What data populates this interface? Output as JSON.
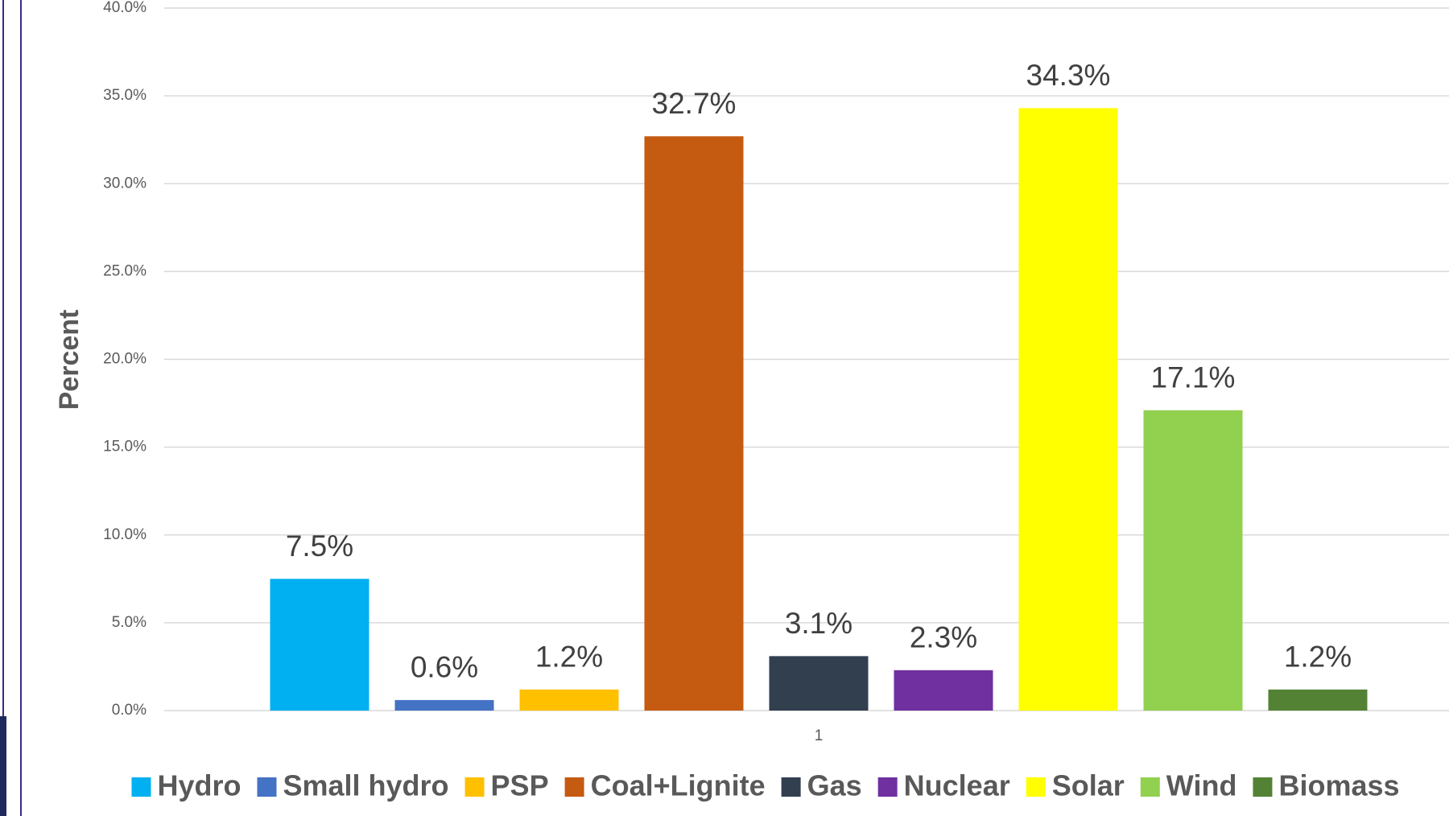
{
  "chart_data": {
    "type": "bar",
    "y_label": "Percent",
    "categories": [
      "1"
    ],
    "series": [
      {
        "name": "Hydro",
        "color": "#00b0f0",
        "values": [
          7.5
        ],
        "value_labels": [
          "7.5%"
        ]
      },
      {
        "name": "Small hydro",
        "color": "#4472c4",
        "values": [
          0.6
        ],
        "value_labels": [
          "0.6%"
        ]
      },
      {
        "name": "PSP",
        "color": "#ffc000",
        "values": [
          1.2
        ],
        "value_labels": [
          "1.2%"
        ]
      },
      {
        "name": "Coal+Lignite",
        "color": "#c55a11",
        "values": [
          32.7
        ],
        "value_labels": [
          "32.7%"
        ]
      },
      {
        "name": "Gas",
        "color": "#323f4f",
        "values": [
          3.1
        ],
        "value_labels": [
          "3.1%"
        ]
      },
      {
        "name": "Nuclear",
        "color": "#7030a0",
        "values": [
          2.3
        ],
        "value_labels": [
          "2.3%"
        ]
      },
      {
        "name": "Solar",
        "color": "#ffff00",
        "values": [
          34.3
        ],
        "value_labels": [
          "34.3%"
        ]
      },
      {
        "name": "Wind",
        "color": "#92d050",
        "values": [
          17.1
        ],
        "value_labels": [
          "17.1%"
        ]
      },
      {
        "name": "Biomass",
        "color": "#548235",
        "values": [
          1.2
        ],
        "value_labels": [
          "1.2%"
        ]
      }
    ],
    "ylim": [
      0,
      40
    ],
    "yticks": [
      {
        "value": 0,
        "label": "0.0%"
      },
      {
        "value": 5,
        "label": "5.0%"
      },
      {
        "value": 10,
        "label": "10.0%"
      },
      {
        "value": 15,
        "label": "15.0%"
      },
      {
        "value": 20,
        "label": "20.0%"
      },
      {
        "value": 25,
        "label": "25.0%"
      },
      {
        "value": 30,
        "label": "30.0%"
      },
      {
        "value": 35,
        "label": "35.0%"
      },
      {
        "value": 40,
        "label": "40.0%"
      }
    ],
    "grid": true,
    "legend": "bottom"
  }
}
